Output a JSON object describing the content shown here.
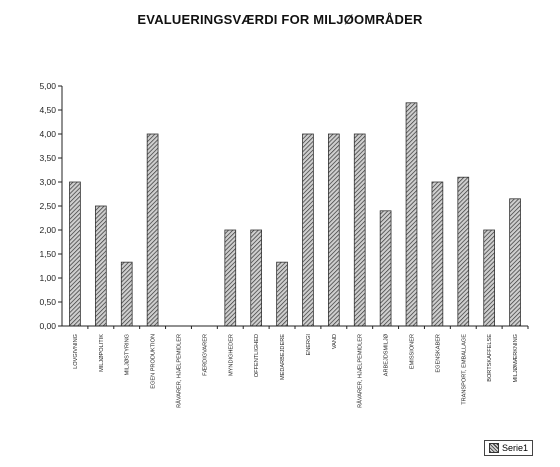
{
  "chart_data": {
    "type": "bar",
    "title": "EVALUERINGSVÆRDI FOR MILJØOMRÅDER",
    "xlabel": "",
    "ylabel": "",
    "ylim": [
      0,
      5
    ],
    "y_ticks": [
      "0,00",
      "0,50",
      "1,00",
      "1,50",
      "2,00",
      "2,50",
      "3,00",
      "3,50",
      "4,00",
      "4,50",
      "5,00"
    ],
    "grid": false,
    "legend_position": "bottom-right",
    "categories": [
      "LOVGIVNING",
      "MILJØPOLITIK",
      "MILJØSTYRING",
      "EGEN PRODUKTION",
      "RÅVARER, HJÆLPEMIDLER",
      "FÆRDIGVARER",
      "MYNDIGHEDER",
      "OFFENTLIGHED",
      "MEDARBEJDERE",
      "ENERGI",
      "VAND",
      "RÅVARER, HJÆLPEMIDLER",
      "ARBEJDSMILJØ",
      "EMISSIONER",
      "EGENSKABER",
      "TRANSPORT, EMBALLAGE",
      "BORTSKAFFELSE",
      "MILJØMÆRKNING"
    ],
    "series": [
      {
        "name": "Serie1",
        "values": [
          3.0,
          2.5,
          1.33,
          4.0,
          0,
          0,
          2.0,
          2.0,
          1.33,
          4.0,
          4.0,
          4.0,
          2.4,
          4.65,
          3.0,
          3.1,
          2.0,
          2.65
        ]
      }
    ]
  },
  "colors": {
    "bar_dark": "#333333",
    "bar_light": "#cfcfcf",
    "axis": "#222222"
  }
}
